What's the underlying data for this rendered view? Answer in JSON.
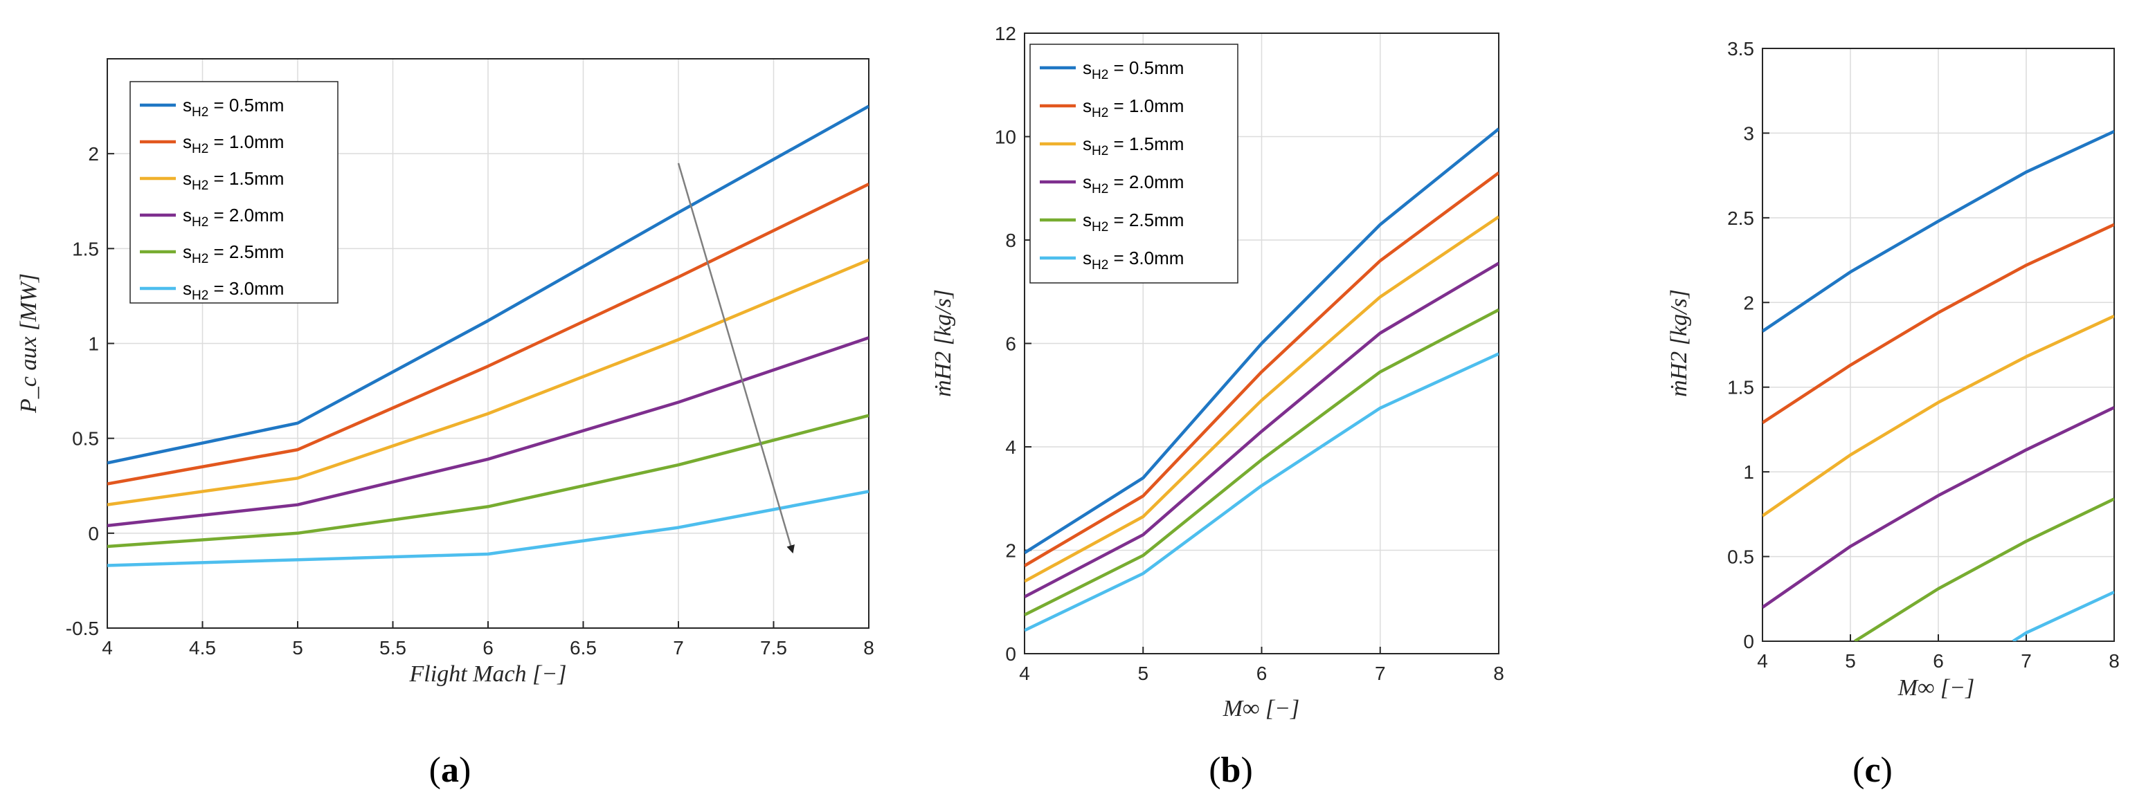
{
  "colors": {
    "blue": "#1f77c4",
    "orange": "#e2571e",
    "yellow": "#f0b12c",
    "purple": "#7e2f8e",
    "green": "#77ac30",
    "cyan": "#4dbeee",
    "arrow": "#7f7f7f",
    "arrowhead": "#222222"
  },
  "legend_entries": [
    {
      "prefix": "s",
      "sub": "H2",
      "suffix": " = 0.5mm"
    },
    {
      "prefix": "s",
      "sub": "H2",
      "suffix": " = 1.0mm"
    },
    {
      "prefix": "s",
      "sub": "H2",
      "suffix": " = 1.5mm"
    },
    {
      "prefix": "s",
      "sub": "H2",
      "suffix": " = 2.0mm"
    },
    {
      "prefix": "s",
      "sub": "H2",
      "suffix": " = 2.5mm"
    },
    {
      "prefix": "s",
      "sub": "H2",
      "suffix": " = 3.0mm"
    }
  ],
  "chart_data": [
    {
      "type": "line",
      "panel_label": {
        "open": "(",
        "letter": "a",
        "close": ")"
      },
      "xlabel": "Flight Mach [−]",
      "ylabel": "P_c aux [MW]",
      "xlim": [
        4,
        8
      ],
      "ylim": [
        -0.5,
        2.5
      ],
      "xticks": [
        4,
        4.5,
        5,
        5.5,
        6,
        6.5,
        7,
        7.5,
        8
      ],
      "xtick_labels": [
        "4",
        "4.5",
        "5",
        "5.5",
        "6",
        "6.5",
        "7",
        "7.5",
        "8"
      ],
      "yticks": [
        -0.5,
        0,
        0.5,
        1,
        1.5,
        2
      ],
      "ytick_labels": [
        "-0.5",
        "0",
        "0.5",
        "1",
        "1.5",
        "2"
      ],
      "grid": true,
      "legend": "top-left",
      "x": [
        4,
        5,
        6,
        7,
        8
      ],
      "series": [
        {
          "name": "sH2 = 0.5mm",
          "values": [
            0.37,
            0.58,
            1.12,
            1.69,
            2.25
          ]
        },
        {
          "name": "sH2 = 1.0mm",
          "values": [
            0.26,
            0.44,
            0.88,
            1.35,
            1.84
          ]
        },
        {
          "name": "sH2 = 1.5mm",
          "values": [
            0.15,
            0.29,
            0.63,
            1.02,
            1.44
          ]
        },
        {
          "name": "sH2 = 2.0mm",
          "values": [
            0.04,
            0.15,
            0.39,
            0.69,
            1.03
          ]
        },
        {
          "name": "sH2 = 2.5mm",
          "values": [
            -0.07,
            0.0,
            0.14,
            0.36,
            0.62
          ]
        },
        {
          "name": "sH2 = 3.0mm",
          "values": [
            -0.17,
            -0.14,
            -0.11,
            0.03,
            0.22
          ]
        }
      ],
      "annotation": {
        "type": "arrow",
        "from": [
          7.0,
          1.95
        ],
        "to": [
          7.6,
          -0.1
        ]
      }
    },
    {
      "type": "line",
      "panel_label": {
        "open": "(",
        "letter": "b",
        "close": ")"
      },
      "xlabel": "M∞ [−]",
      "ylabel": "ṁH2 [kg/s]",
      "xlim": [
        4,
        8
      ],
      "ylim": [
        0,
        12
      ],
      "xticks": [
        4,
        5,
        6,
        7,
        8
      ],
      "xtick_labels": [
        "4",
        "5",
        "6",
        "7",
        "8"
      ],
      "yticks": [
        0,
        2,
        4,
        6,
        8,
        10,
        12
      ],
      "ytick_labels": [
        "0",
        "2",
        "4",
        "6",
        "8",
        "10",
        "12"
      ],
      "grid": true,
      "legend": "top-left",
      "x": [
        4,
        5,
        6,
        7,
        8
      ],
      "series": [
        {
          "name": "sH2 = 0.5mm",
          "values": [
            1.95,
            3.4,
            6.0,
            8.3,
            10.15
          ]
        },
        {
          "name": "sH2 = 1.0mm",
          "values": [
            1.7,
            3.05,
            5.45,
            7.6,
            9.3
          ]
        },
        {
          "name": "sH2 = 1.5mm",
          "values": [
            1.4,
            2.65,
            4.9,
            6.9,
            8.45
          ]
        },
        {
          "name": "sH2 = 2.0mm",
          "values": [
            1.1,
            2.3,
            4.3,
            6.2,
            7.55
          ]
        },
        {
          "name": "sH2 = 2.5mm",
          "values": [
            0.75,
            1.9,
            3.75,
            5.45,
            6.65
          ]
        },
        {
          "name": "sH2 = 3.0mm",
          "values": [
            0.45,
            1.55,
            3.25,
            4.75,
            5.8
          ]
        }
      ]
    },
    {
      "type": "line",
      "panel_label": {
        "open": "(",
        "letter": "c",
        "close": ")"
      },
      "xlabel": "M∞ [−]",
      "ylabel": "ṁH2 [kg/s]",
      "xlim": [
        4,
        8
      ],
      "ylim": [
        0,
        3.5
      ],
      "xticks": [
        4,
        5,
        6,
        7,
        8
      ],
      "xtick_labels": [
        "4",
        "5",
        "6",
        "7",
        "8"
      ],
      "yticks": [
        0,
        0.5,
        1,
        1.5,
        2,
        2.5,
        3,
        3.5
      ],
      "ytick_labels": [
        "0",
        "0.5",
        "1",
        "1.5",
        "2",
        "2.5",
        "3",
        "3.5"
      ],
      "grid": true,
      "legend": "none",
      "x": [
        4,
        5,
        6,
        7,
        8
      ],
      "series": [
        {
          "name": "sH2 = 0.5mm",
          "x": [
            4,
            5,
            6,
            7,
            8
          ],
          "values": [
            1.83,
            2.18,
            2.48,
            2.77,
            3.01
          ]
        },
        {
          "name": "sH2 = 1.0mm",
          "x": [
            4,
            5,
            6,
            7,
            8
          ],
          "values": [
            1.29,
            1.63,
            1.94,
            2.22,
            2.46
          ]
        },
        {
          "name": "sH2 = 1.5mm",
          "x": [
            4,
            5,
            6,
            7,
            8
          ],
          "values": [
            0.74,
            1.1,
            1.41,
            1.68,
            1.92
          ]
        },
        {
          "name": "sH2 = 2.0mm",
          "x": [
            4,
            5,
            6,
            7,
            8
          ],
          "values": [
            0.2,
            0.56,
            0.86,
            1.13,
            1.38
          ]
        },
        {
          "name": "sH2 = 2.5mm",
          "x": [
            5.05,
            6,
            7,
            8
          ],
          "values": [
            0.0,
            0.31,
            0.59,
            0.84
          ]
        },
        {
          "name": "sH2 = 3.0mm",
          "x": [
            6.85,
            7,
            8
          ],
          "values": [
            0.0,
            0.05,
            0.29
          ]
        }
      ]
    }
  ]
}
